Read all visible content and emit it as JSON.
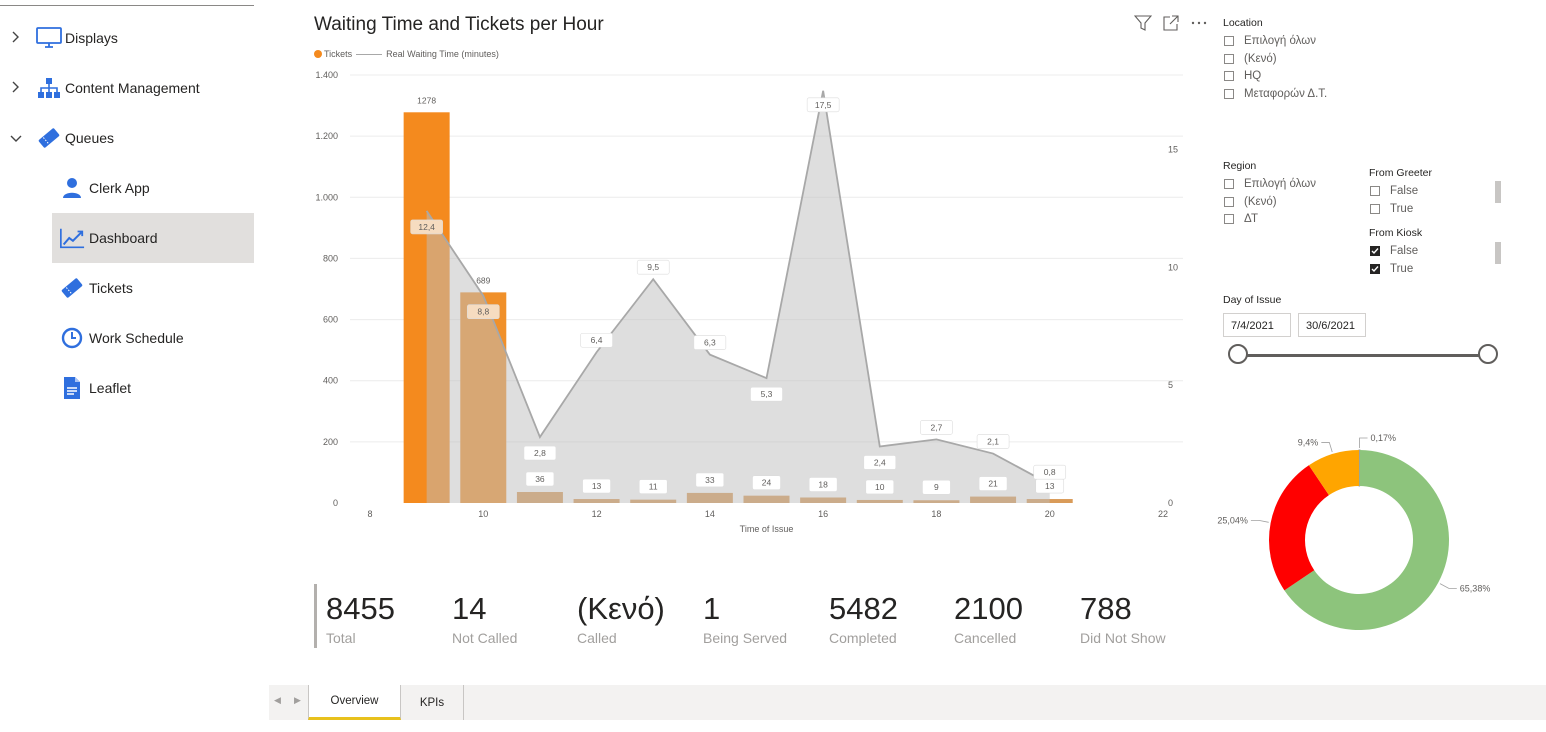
{
  "sidebar": {
    "items": [
      {
        "label": "Displays",
        "icon": "monitor-icon",
        "expand": "collapsed"
      },
      {
        "label": "Content Management",
        "icon": "sitemap-icon",
        "expand": "collapsed"
      },
      {
        "label": "Queues",
        "icon": "ticket-icon",
        "expand": "expanded"
      },
      {
        "label": "Clerk App",
        "icon": "user-icon"
      },
      {
        "label": "Dashboard",
        "icon": "trend-chart-icon",
        "active": true
      },
      {
        "label": "Tickets",
        "icon": "ticket-icon"
      },
      {
        "label": "Work Schedule",
        "icon": "clock-icon"
      },
      {
        "label": "Leaflet",
        "icon": "document-icon"
      }
    ]
  },
  "chart_header": {
    "title": "Waiting Time and Tickets per Hour",
    "icons": [
      "filter-icon",
      "focus-mode-icon",
      "more-options-icon"
    ]
  },
  "chart_data": [
    {
      "type": "bar+area",
      "title": "Waiting Time and Tickets per Hour",
      "legend": [
        "Tickets",
        "Real Waiting Time (minutes)"
      ],
      "xlabel": "Time of Issue",
      "x_ticks": [
        8,
        10,
        12,
        14,
        16,
        18,
        20,
        22
      ],
      "y_ticks_left_labels": [
        "0",
        "200",
        "400",
        "600",
        "800",
        "1.000",
        "1.200",
        "1.400"
      ],
      "y_ticks_left": [
        0,
        200,
        400,
        600,
        800,
        1000,
        1200,
        1400
      ],
      "ylim_left": [
        0,
        1400
      ],
      "y_ticks_right": [
        0,
        5,
        10,
        15
      ],
      "ylim_right": [
        0,
        18.17
      ],
      "xlim": [
        7.8,
        22.2
      ],
      "series": [
        {
          "name": "Tickets",
          "axis": "left",
          "color": "#d99b59",
          "highlight_color": "#f48a1e",
          "x": [
            9,
            10,
            11,
            12,
            13,
            14,
            15,
            16,
            17,
            18,
            19,
            20
          ],
          "values": [
            1278,
            689,
            36,
            13,
            11,
            33,
            24,
            18,
            10,
            9,
            21,
            13
          ],
          "labels": [
            "1278",
            "689",
            "36",
            "13",
            "11",
            "33",
            "24",
            "18",
            "10",
            "9",
            "21",
            "13"
          ]
        },
        {
          "name": "Real Waiting Time (minutes)",
          "axis": "right",
          "color": "#a8a8a8",
          "x": [
            9,
            10,
            11,
            12,
            13,
            14,
            15,
            16,
            17,
            18,
            19,
            20
          ],
          "values": [
            12.4,
            8.8,
            2.8,
            6.4,
            9.5,
            6.3,
            5.3,
            17.5,
            2.4,
            2.7,
            2.1,
            0.8
          ],
          "labels": [
            "12,4",
            "8,8",
            "2,8",
            "6,4",
            "9,5",
            "6,3",
            "5,3",
            "17,5",
            "2,4",
            "2,7",
            "2,1",
            "0,8"
          ]
        }
      ]
    },
    {
      "type": "pie",
      "variant": "donut",
      "slices": [
        {
          "label": "0,17%",
          "value": 0.17,
          "color": "#9e9e9e"
        },
        {
          "label": "65,38%",
          "value": 65.38,
          "color": "#8dc47c"
        },
        {
          "label": "25,04%",
          "value": 25.04,
          "color": "#ff0000"
        },
        {
          "label": "9,4%",
          "value": 9.4,
          "color": "#ffa500"
        }
      ]
    }
  ],
  "slicers": {
    "location": {
      "title": "Location",
      "options": [
        {
          "label": "Επιλογή όλων",
          "checked": false
        },
        {
          "label": "(Κενό)",
          "checked": false
        },
        {
          "label": "HQ",
          "checked": false
        },
        {
          "label": "Μεταφορών Δ.Τ.",
          "checked": false
        }
      ]
    },
    "region": {
      "title": "Region",
      "options": [
        {
          "label": "Επιλογή όλων",
          "checked": false
        },
        {
          "label": "(Κενό)",
          "checked": false
        },
        {
          "label": "ΔΤ",
          "checked": false
        }
      ]
    },
    "from_greeter": {
      "title": "From Greeter",
      "options": [
        {
          "label": "False",
          "checked": false
        },
        {
          "label": "True",
          "checked": false
        }
      ]
    },
    "from_kiosk": {
      "title": "From Kiosk",
      "options": [
        {
          "label": "False",
          "checked": true
        },
        {
          "label": "True",
          "checked": true
        }
      ]
    },
    "day_of_issue": {
      "title": "Day of Issue",
      "start": "7/4/2021",
      "end": "30/6/2021"
    }
  },
  "kpis": [
    {
      "value": "8455",
      "label": "Total"
    },
    {
      "value": "14",
      "label": "Not Called"
    },
    {
      "value": "(Κενό)",
      "label": "Called"
    },
    {
      "value": "1",
      "label": "Being Served"
    },
    {
      "value": "5482",
      "label": "Completed"
    },
    {
      "value": "2100",
      "label": "Cancelled"
    },
    {
      "value": "788",
      "label": "Did Not Show"
    }
  ],
  "tabs": {
    "nav_prev": "◀",
    "nav_next": "▶",
    "items": [
      {
        "label": "Overview",
        "active": true
      },
      {
        "label": "KPIs",
        "active": false
      }
    ]
  },
  "colors": {
    "accent_blue": "#2f6fde",
    "tab_active": "#e8c11d"
  }
}
